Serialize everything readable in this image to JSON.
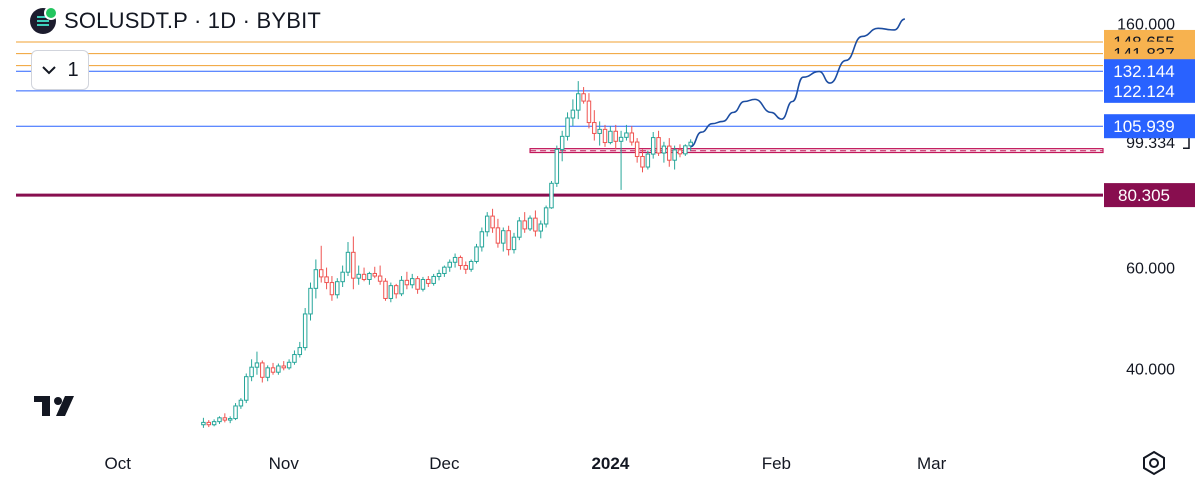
{
  "header": {
    "title": "SOLUSDT.P · 1D · BYBIT",
    "indicator_count": "1"
  },
  "icons": {
    "logo": "bybit-coin-icon",
    "collapse": "chevron-down-icon",
    "brand": "tradingview-logo",
    "settings": "settings-icon"
  },
  "colors": {
    "up": "#26a69a",
    "down": "#ef5350",
    "resistance_orange": "#f0a030",
    "resistance_blue": "#2962ff",
    "support": "#880e4f",
    "zone": "#c2185b",
    "projection": "#1c4da1"
  },
  "chart_data": {
    "type": "candlestick",
    "symbol": "SOLUSDT.P",
    "timeframe": "1D",
    "exchange": "BYBIT",
    "x_axis": {
      "ticks": [
        "Oct",
        "Nov",
        "Dec",
        "2024",
        "Feb",
        "Mar"
      ],
      "tick_dates": [
        "2023-10-01",
        "2023-11-01",
        "2023-12-01",
        "2024-01-01",
        "2024-02-01",
        "2024-03-01"
      ],
      "range": [
        "2023-09-12",
        "2024-04-02"
      ]
    },
    "y_axis": {
      "ticks": [
        40,
        60,
        160
      ],
      "tick_labels": [
        "40.000",
        "60.000",
        "160.000"
      ],
      "range": [
        30,
        165
      ],
      "scale": "log",
      "position": "right"
    },
    "last_price": {
      "value": 99.334,
      "label": "99.334"
    },
    "levels": [
      {
        "value": 148.655,
        "label": "148.655",
        "color": "#f0a030",
        "width": 1
      },
      {
        "value": 141.837,
        "label": "141.837",
        "color": "#f0a030",
        "width": 1
      },
      {
        "value": 135.143,
        "label": "135.143",
        "color": "#f0a030",
        "width": 1
      },
      {
        "value": 132.144,
        "label": "132.144",
        "color": "#2962ff",
        "width": 1
      },
      {
        "value": 122.124,
        "label": "122.124",
        "color": "#2962ff",
        "width": 1
      },
      {
        "value": 105.939,
        "label": "105.939",
        "color": "#2962ff",
        "width": 1
      },
      {
        "value": 80.305,
        "label": "80.305",
        "color": "#880e4f",
        "width": 3
      }
    ],
    "zone": {
      "from": 95.3,
      "to": 96.8,
      "mid": 96.0,
      "start": "2023-12-17",
      "end": "2024-04-02"
    },
    "candles_start": "2023-10-17",
    "candles": [
      [
        31.9,
        32.8,
        31.5,
        32.2
      ],
      [
        32.2,
        32.5,
        31.6,
        31.9
      ],
      [
        31.9,
        32.6,
        31.7,
        32.3
      ],
      [
        32.3,
        33.0,
        32.0,
        32.8
      ],
      [
        32.8,
        33.4,
        32.2,
        32.5
      ],
      [
        32.5,
        33.0,
        32.1,
        32.7
      ],
      [
        32.7,
        34.8,
        32.5,
        34.4
      ],
      [
        34.4,
        35.5,
        34.0,
        35.2
      ],
      [
        35.2,
        39.2,
        34.8,
        38.7
      ],
      [
        38.7,
        41.5,
        38.0,
        40.2
      ],
      [
        40.2,
        42.8,
        39.0,
        40.9
      ],
      [
        40.9,
        41.3,
        37.8,
        38.6
      ],
      [
        38.6,
        40.5,
        38.0,
        40.1
      ],
      [
        40.1,
        40.9,
        39.0,
        39.4
      ],
      [
        39.4,
        40.8,
        39.0,
        40.4
      ],
      [
        40.4,
        41.2,
        39.7,
        40.1
      ],
      [
        40.1,
        41.5,
        39.8,
        41.0
      ],
      [
        41.0,
        43.0,
        40.6,
        42.3
      ],
      [
        42.3,
        44.5,
        41.8,
        43.5
      ],
      [
        43.5,
        51.0,
        43.0,
        49.8
      ],
      [
        49.8,
        56.5,
        48.5,
        55.2
      ],
      [
        55.2,
        62.0,
        53.0,
        59.5
      ],
      [
        59.5,
        65.5,
        56.5,
        57.8
      ],
      [
        57.8,
        60.0,
        55.0,
        56.5
      ],
      [
        56.5,
        58.0,
        52.5,
        53.8
      ],
      [
        53.8,
        57.5,
        53.0,
        56.7
      ],
      [
        56.7,
        60.5,
        55.5,
        58.9
      ],
      [
        58.9,
        66.5,
        58.0,
        63.8
      ],
      [
        63.8,
        68.0,
        55.0,
        57.5
      ],
      [
        57.5,
        60.5,
        56.0,
        58.4
      ],
      [
        58.4,
        60.0,
        56.8,
        57.2
      ],
      [
        57.2,
        59.0,
        56.0,
        58.6
      ],
      [
        58.6,
        60.2,
        57.5,
        58.0
      ],
      [
        58.0,
        60.5,
        56.0,
        56.8
      ],
      [
        56.8,
        57.5,
        52.5,
        53.0
      ],
      [
        53.0,
        56.5,
        52.2,
        55.8
      ],
      [
        55.8,
        56.2,
        53.0,
        54.0
      ],
      [
        54.0,
        58.0,
        53.5,
        57.0
      ],
      [
        57.0,
        59.0,
        55.0,
        56.0
      ],
      [
        56.0,
        58.5,
        55.2,
        57.4
      ],
      [
        57.4,
        58.0,
        54.0,
        55.0
      ],
      [
        55.0,
        57.8,
        54.5,
        57.2
      ],
      [
        57.2,
        58.0,
        55.5,
        56.3
      ],
      [
        56.3,
        58.5,
        55.8,
        57.9
      ],
      [
        57.9,
        59.5,
        57.0,
        58.6
      ],
      [
        58.6,
        60.5,
        57.8,
        60.1
      ],
      [
        60.1,
        62.0,
        59.0,
        61.3
      ],
      [
        61.3,
        63.5,
        60.0,
        62.5
      ],
      [
        62.5,
        63.0,
        59.5,
        60.5
      ],
      [
        60.5,
        61.5,
        58.5,
        59.6
      ],
      [
        59.6,
        62.0,
        59.0,
        61.5
      ],
      [
        61.5,
        66.0,
        61.0,
        65.2
      ],
      [
        65.2,
        70.5,
        64.0,
        69.3
      ],
      [
        69.3,
        75.0,
        68.0,
        73.8
      ],
      [
        73.8,
        76.0,
        69.0,
        70.4
      ],
      [
        70.4,
        73.0,
        65.0,
        66.2
      ],
      [
        66.2,
        70.5,
        64.0,
        69.6
      ],
      [
        69.6,
        71.0,
        63.0,
        64.5
      ],
      [
        64.5,
        69.0,
        63.5,
        67.8
      ],
      [
        67.8,
        73.5,
        67.0,
        72.4
      ],
      [
        72.4,
        75.0,
        69.0,
        70.1
      ],
      [
        70.1,
        74.0,
        69.5,
        73.2
      ],
      [
        73.2,
        75.5,
        68.0,
        69.5
      ],
      [
        69.5,
        72.5,
        67.5,
        71.5
      ],
      [
        71.5,
        77.0,
        70.5,
        76.3
      ],
      [
        76.3,
        85.0,
        76.0,
        84.2
      ],
      [
        84.2,
        98.0,
        83.0,
        96.5
      ],
      [
        96.5,
        104.0,
        92.0,
        101.7
      ],
      [
        101.7,
        112.0,
        100.0,
        109.5
      ],
      [
        109.5,
        118.0,
        106.0,
        113.0
      ],
      [
        113.0,
        127.0,
        109.0,
        120.7
      ],
      [
        120.7,
        124.0,
        116.0,
        117.2
      ],
      [
        117.2,
        121.0,
        105.0,
        107.5
      ],
      [
        107.5,
        113.0,
        100.0,
        102.9
      ],
      [
        102.9,
        108.0,
        98.0,
        104.6
      ],
      [
        104.6,
        106.5,
        97.5,
        99.2
      ],
      [
        99.2,
        106.0,
        98.5,
        103.8
      ],
      [
        103.8,
        106.5,
        96.5,
        99.7
      ],
      [
        99.7,
        104.0,
        82.0,
        101.3
      ],
      [
        101.3,
        106.5,
        100.0,
        103.1
      ],
      [
        103.1,
        106.0,
        98.0,
        99.4
      ],
      [
        99.4,
        101.0,
        91.5,
        93.8
      ],
      [
        93.8,
        96.5,
        88.0,
        89.9
      ],
      [
        89.9,
        96.0,
        89.0,
        94.7
      ],
      [
        94.7,
        103.5,
        93.0,
        101.2
      ],
      [
        101.2,
        104.0,
        94.0,
        95.1
      ],
      [
        95.1,
        99.5,
        91.5,
        97.8
      ],
      [
        97.8,
        101.0,
        90.0,
        92.4
      ],
      [
        92.4,
        98.0,
        89.0,
        96.3
      ],
      [
        96.3,
        98.5,
        93.5,
        94.8
      ],
      [
        94.8,
        98.5,
        94.0,
        97.9
      ],
      [
        97.9,
        100.5,
        96.0,
        99.334
      ]
    ],
    "projection": {
      "description": "Hand-drawn projected path",
      "points": [
        [
          "2024-01-16",
          97.6
        ],
        [
          "2024-01-18",
          103.4
        ],
        [
          "2024-01-20",
          107.0
        ],
        [
          "2024-01-22",
          108.0
        ],
        [
          "2024-01-24",
          112.0
        ],
        [
          "2024-01-26",
          117.0
        ],
        [
          "2024-01-28",
          118.0
        ],
        [
          "2024-01-31",
          112.0
        ],
        [
          "2024-02-02",
          109.0
        ],
        [
          "2024-02-04",
          117.0
        ],
        [
          "2024-02-06",
          129.0
        ],
        [
          "2024-02-09",
          132.0
        ],
        [
          "2024-02-11",
          126.0
        ],
        [
          "2024-02-14",
          138.0
        ],
        [
          "2024-02-17",
          152.0
        ],
        [
          "2024-02-20",
          157.0
        ],
        [
          "2024-02-23",
          156.0
        ],
        [
          "2024-02-25",
          163.0
        ]
      ]
    }
  }
}
